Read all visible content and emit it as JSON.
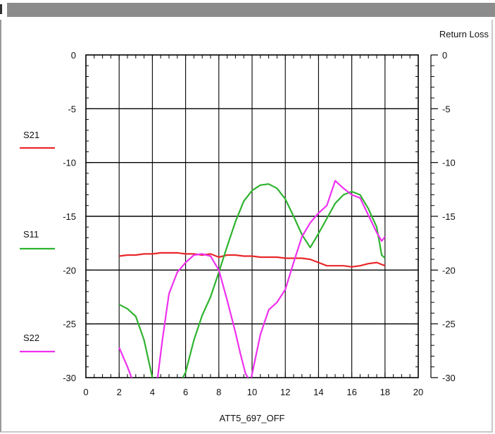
{
  "chart_data": {
    "type": "line",
    "right_axis_title": "Return Loss",
    "xlabel": "ATT5_697_OFF",
    "xlim": [
      0,
      20
    ],
    "ylim": [
      -30,
      0
    ],
    "x_ticks": [
      "0",
      "2",
      "4",
      "6",
      "8",
      "10",
      "12",
      "14",
      "16",
      "18",
      "20"
    ],
    "y_ticks_left": [
      "0",
      "-5",
      "-10",
      "-15",
      "-20",
      "-25",
      "-30"
    ],
    "y_ticks_right": [
      "0",
      "-5",
      "-10",
      "-15",
      "-20",
      "-25",
      "-30"
    ],
    "grid": true,
    "legend_placement": "left",
    "series": [
      {
        "name": "S21",
        "color": "#e8282a",
        "x": [
          2,
          2.5,
          3,
          3.5,
          4,
          4.5,
          5,
          5.5,
          6,
          6.5,
          7,
          7.5,
          8,
          8.5,
          9,
          9.5,
          10,
          10.5,
          11,
          11.5,
          12,
          12.5,
          13,
          13.5,
          14,
          14.5,
          15,
          15.5,
          16,
          16.5,
          17,
          17.5,
          18
        ],
        "y": [
          -18.7,
          -18.6,
          -18.6,
          -18.5,
          -18.5,
          -18.4,
          -18.4,
          -18.4,
          -18.5,
          -18.5,
          -18.6,
          -18.5,
          -18.8,
          -18.6,
          -18.6,
          -18.7,
          -18.7,
          -18.8,
          -18.8,
          -18.8,
          -18.9,
          -18.9,
          -18.9,
          -19.0,
          -19.3,
          -19.6,
          -19.6,
          -19.6,
          -19.7,
          -19.6,
          -19.4,
          -19.3,
          -19.6
        ]
      },
      {
        "name": "S11",
        "color": "#2fb32f",
        "x": [
          2,
          2.5,
          3,
          3.5,
          4,
          4.3,
          4.6,
          5,
          5.5,
          6,
          6.5,
          7,
          7.5,
          8,
          8.5,
          9,
          9.5,
          10,
          10.5,
          11,
          11.5,
          12,
          12.5,
          13,
          13.5,
          14,
          14.5,
          15,
          15.5,
          16,
          16.5,
          17,
          17.5,
          17.8,
          18
        ],
        "y": [
          -23.2,
          -23.6,
          -24.3,
          -26.5,
          -30.0,
          -34.0,
          -35.0,
          -34.0,
          -31.0,
          -29.5,
          -26.5,
          -24.2,
          -22.5,
          -20.2,
          -17.8,
          -15.5,
          -13.6,
          -12.6,
          -12.1,
          -12.0,
          -12.4,
          -13.4,
          -15.0,
          -16.7,
          -17.9,
          -16.6,
          -15.2,
          -13.8,
          -13.0,
          -12.7,
          -13.0,
          -14.3,
          -16.0,
          -18.6,
          -18.9
        ]
      },
      {
        "name": "S22",
        "color": "#ee30ee",
        "x": [
          2,
          2.5,
          3,
          3.3,
          3.6,
          4,
          4.3,
          4.6,
          5,
          5.5,
          6,
          6.5,
          7,
          7.5,
          8,
          8.5,
          9,
          9.3,
          9.6,
          9.9,
          10.2,
          10.5,
          11,
          11.5,
          12,
          12.5,
          13,
          13.5,
          14,
          14.5,
          15,
          15.5,
          16,
          16.5,
          17,
          17.5,
          17.8,
          18
        ],
        "y": [
          -27.2,
          -29.0,
          -31.0,
          -32.8,
          -33.5,
          -32.5,
          -30.2,
          -26.5,
          -22.2,
          -20.2,
          -19.3,
          -18.6,
          -18.5,
          -18.7,
          -20.0,
          -22.8,
          -25.8,
          -27.8,
          -29.6,
          -30.4,
          -28.2,
          -26.0,
          -23.7,
          -23.0,
          -21.8,
          -19.3,
          -16.9,
          -15.6,
          -14.7,
          -14.0,
          -11.7,
          -12.4,
          -13.0,
          -13.3,
          -14.9,
          -16.5,
          -17.3,
          -16.9
        ]
      }
    ]
  }
}
